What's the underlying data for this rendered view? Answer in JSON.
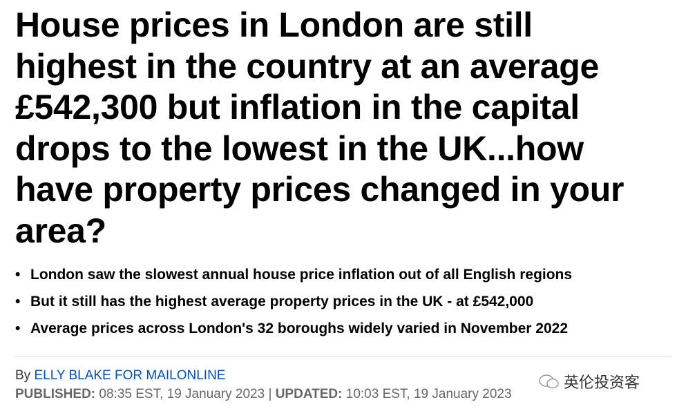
{
  "headline": {
    "lines": [
      "House prices in London are still",
      "highest in the country at an average",
      "£542,300 but inflation in the capital",
      "drops to the lowest in the UK...how",
      "have property prices changed in your",
      "area?"
    ]
  },
  "bullets": [
    "London saw the slowest annual house price inflation out of all English regions",
    "But it still has the highest average property prices in the UK - at £542,000",
    "Average prices across London's 32 boroughs widely varied in November 2022"
  ],
  "byline": {
    "prefix": "By",
    "author": "ELLY BLAKE FOR MAILONLINE"
  },
  "dates": {
    "published_label": "PUBLISHED:",
    "published": "08:35 EST, 19 January 2023",
    "separator": "|",
    "updated_label": "UPDATED:",
    "updated": "10:03 EST, 19 January 2023"
  },
  "watermark": "英伦投资客"
}
